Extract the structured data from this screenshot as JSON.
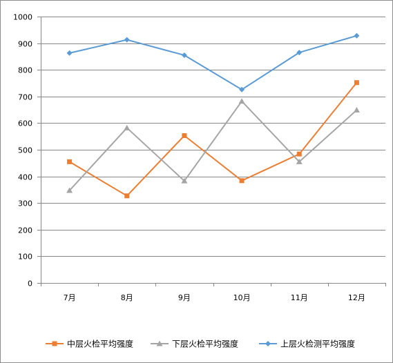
{
  "chart_data": {
    "type": "line",
    "categories": [
      "7月",
      "8月",
      "9月",
      "10月",
      "11月",
      "12月"
    ],
    "series": [
      {
        "name": "中层火检平均强度",
        "color": "#ed7d31",
        "marker": "square",
        "values": [
          455,
          327,
          553,
          384,
          484,
          752
        ]
      },
      {
        "name": "下层火检平均强度",
        "color": "#a5a5a5",
        "marker": "triangle",
        "values": [
          347,
          582,
          383,
          682,
          455,
          649
        ]
      },
      {
        "name": "上层火检测平均强度",
        "color": "#5b9bd5",
        "marker": "diamond",
        "values": [
          863,
          913,
          855,
          726,
          865,
          928
        ]
      }
    ],
    "ylim": [
      0,
      1000
    ],
    "yticks": [
      "0",
      "100",
      "200",
      "300",
      "400",
      "500",
      "600",
      "700",
      "800",
      "900",
      "1000"
    ],
    "grid": true,
    "legend": "bottom",
    "title": "",
    "xlabel": "",
    "ylabel": ""
  }
}
